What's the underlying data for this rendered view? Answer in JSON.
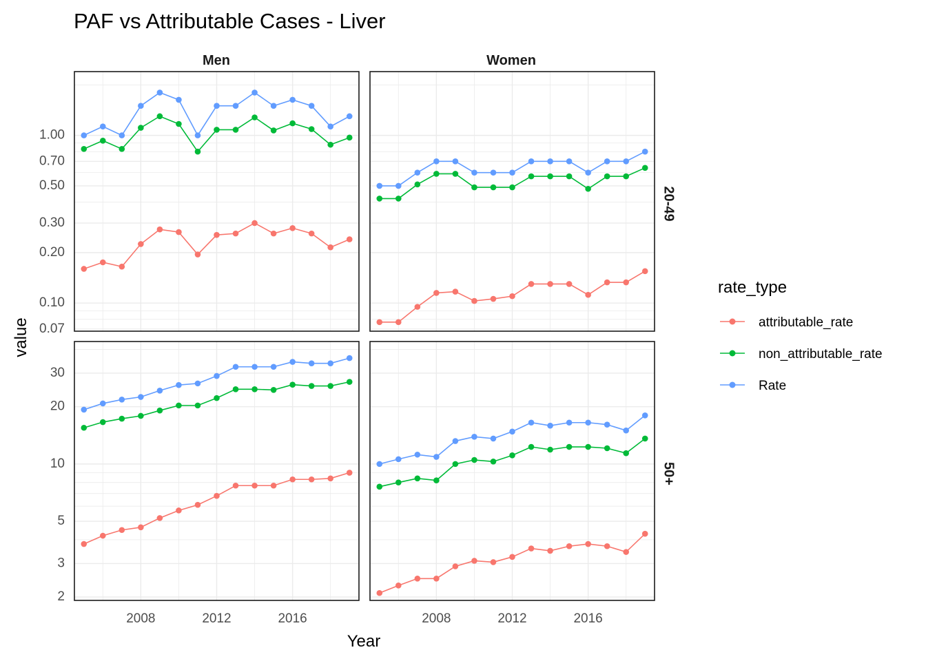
{
  "chart_data": {
    "type": "line",
    "title": "PAF vs Attributable Cases - Liver",
    "xlabel": "Year",
    "ylabel": "value",
    "y_scale": "log",
    "grid": true,
    "legend": {
      "title": "rate_type",
      "position": "right"
    },
    "x_ticks": [
      "2008",
      "2012",
      "2016"
    ],
    "columns": [
      "Men",
      "Women"
    ],
    "rows": [
      "20-49",
      "50+"
    ],
    "series_colors": {
      "attributable_rate": "#F8766D",
      "non_attributable_rate": "#00BA38",
      "Rate": "#619CFF"
    },
    "x": [
      2005,
      2006,
      2007,
      2008,
      2009,
      2010,
      2011,
      2012,
      2013,
      2014,
      2015,
      2016,
      2017,
      2018,
      2019
    ],
    "row_scales": [
      {
        "row": "20-49",
        "ylim": [
          0.068,
          2.4
        ],
        "y_ticks": [
          0.07,
          0.1,
          0.2,
          0.3,
          0.5,
          0.7,
          1.0
        ],
        "tick_labels": [
          "0.07",
          "0.10",
          "0.20",
          "0.30",
          "0.50",
          "0.70",
          "1.00"
        ]
      },
      {
        "row": "50+",
        "ylim": [
          1.92,
          44
        ],
        "y_ticks": [
          2,
          3,
          5,
          10,
          20,
          30
        ],
        "tick_labels": [
          "2",
          "3",
          "5",
          "10",
          "20",
          "30"
        ]
      }
    ],
    "panels": [
      {
        "col": "Men",
        "row": "20-49",
        "series": [
          {
            "name": "attributable_rate",
            "values": [
              0.16,
              0.175,
              0.165,
              0.225,
              0.275,
              0.265,
              0.195,
              0.255,
              0.26,
              0.3,
              0.26,
              0.28,
              0.26,
              0.215,
              0.24
            ]
          },
          {
            "name": "non_attributable_rate",
            "values": [
              0.83,
              0.93,
              0.83,
              1.11,
              1.3,
              1.17,
              0.8,
              1.08,
              1.08,
              1.28,
              1.07,
              1.18,
              1.09,
              0.88,
              0.97
            ]
          },
          {
            "name": "Rate",
            "values": [
              1.0,
              1.13,
              1.0,
              1.5,
              1.8,
              1.63,
              1.0,
              1.5,
              1.5,
              1.8,
              1.5,
              1.63,
              1.5,
              1.13,
              1.3
            ]
          }
        ]
      },
      {
        "col": "Women",
        "row": "20-49",
        "series": [
          {
            "name": "attributable_rate",
            "values": [
              0.077,
              0.077,
              0.095,
              0.115,
              0.117,
              0.103,
              0.106,
              0.11,
              0.13,
              0.13,
              0.13,
              0.112,
              0.133,
              0.133,
              0.155
            ]
          },
          {
            "name": "non_attributable_rate",
            "values": [
              0.42,
              0.42,
              0.51,
              0.59,
              0.59,
              0.49,
              0.49,
              0.49,
              0.57,
              0.57,
              0.57,
              0.48,
              0.57,
              0.57,
              0.64
            ]
          },
          {
            "name": "Rate",
            "values": [
              0.5,
              0.5,
              0.6,
              0.7,
              0.7,
              0.6,
              0.6,
              0.6,
              0.7,
              0.7,
              0.7,
              0.6,
              0.7,
              0.7,
              0.8
            ]
          }
        ]
      },
      {
        "col": "Men",
        "row": "50+",
        "series": [
          {
            "name": "attributable_rate",
            "values": [
              3.8,
              4.2,
              4.5,
              4.65,
              5.2,
              5.7,
              6.1,
              6.8,
              7.7,
              7.7,
              7.7,
              8.3,
              8.3,
              8.4,
              9.0
            ]
          },
          {
            "name": "non_attributable_rate",
            "values": [
              15.5,
              16.6,
              17.3,
              17.9,
              19.1,
              20.3,
              20.3,
              22.2,
              24.7,
              24.7,
              24.5,
              26.1,
              25.7,
              25.7,
              27.0
            ]
          },
          {
            "name": "Rate",
            "values": [
              19.3,
              20.8,
              21.8,
              22.5,
              24.3,
              26.0,
              26.5,
              29.0,
              32.4,
              32.4,
              32.4,
              34.4,
              33.8,
              33.8,
              36.0
            ]
          }
        ]
      },
      {
        "col": "Women",
        "row": "50+",
        "series": [
          {
            "name": "attributable_rate",
            "values": [
              2.1,
              2.3,
              2.5,
              2.5,
              2.9,
              3.1,
              3.05,
              3.25,
              3.6,
              3.5,
              3.7,
              3.8,
              3.7,
              3.45,
              4.3
            ]
          },
          {
            "name": "non_attributable_rate",
            "values": [
              7.6,
              8.0,
              8.4,
              8.2,
              10.0,
              10.5,
              10.3,
              11.1,
              12.3,
              11.9,
              12.3,
              12.3,
              12.1,
              11.4,
              13.6
            ]
          },
          {
            "name": "Rate",
            "values": [
              10.0,
              10.6,
              11.2,
              10.9,
              13.2,
              13.9,
              13.6,
              14.8,
              16.5,
              15.9,
              16.5,
              16.5,
              16.1,
              15.0,
              18.0
            ]
          }
        ]
      }
    ]
  }
}
